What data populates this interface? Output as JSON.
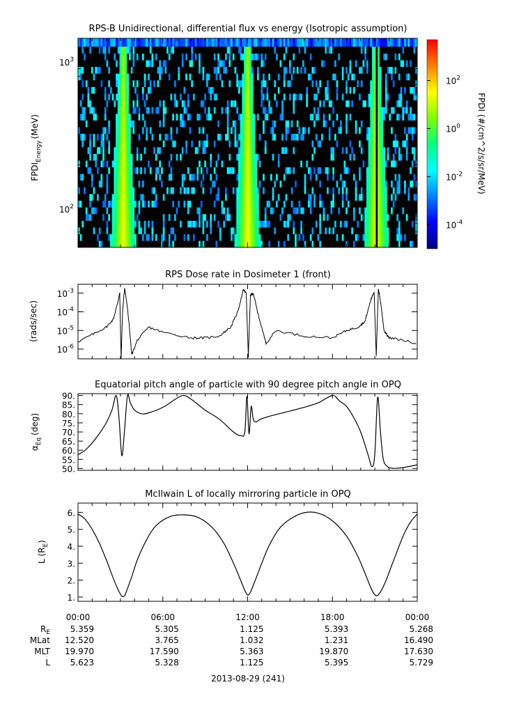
{
  "date_label": "2013-08-29 (241)",
  "time_ticks": [
    "00:00",
    "06:00",
    "12:00",
    "18:00",
    "00:00"
  ],
  "ephemeris": {
    "rows": [
      {
        "label": "R",
        "label_sub": "E",
        "values": [
          "5.359",
          "5.305",
          "1.125",
          "5.393",
          "5.268"
        ]
      },
      {
        "label": "MLat",
        "label_sub": "",
        "values": [
          "12.520",
          "3.765",
          "1.032",
          "1.231",
          "16.490"
        ]
      },
      {
        "label": "MLT",
        "label_sub": "",
        "values": [
          "19.970",
          "17.590",
          "5.363",
          "19.870",
          "17.630"
        ]
      },
      {
        "label": "L",
        "label_sub": "",
        "values": [
          "5.623",
          "5.328",
          "1.125",
          "5.395",
          "5.729"
        ]
      }
    ]
  },
  "colors": {
    "colormap": [
      "#000080",
      "#0000ff",
      "#0080ff",
      "#00ffff",
      "#00ff80",
      "#80ff00",
      "#ffff00",
      "#ff8000",
      "#ff0000"
    ]
  },
  "chart_data": [
    {
      "type": "heatmap",
      "title": "RPS-B  Unidirectional, differential flux vs energy (Isotropic assumption)",
      "ylabel": "FPDI",
      "ylabel_sub": "Energy",
      "ylabel_unit": "(MeV)",
      "yscale": "log",
      "ylim": [
        55,
        1450
      ],
      "yticks": [
        {
          "base": "10",
          "exp": "2",
          "value": 100
        },
        {
          "base": "10",
          "exp": "3",
          "value": 1000
        }
      ],
      "x_hours": [
        0,
        24
      ],
      "colorbar": {
        "label": "FPDI (#/cm^2/s/sr/MeV)",
        "scale": "log",
        "range": [
          1e-05,
          5000
        ],
        "ticks": [
          {
            "base": "10",
            "exp": "2",
            "value": 100
          },
          {
            "base": "10",
            "exp": "0",
            "value": 1
          },
          {
            "base": "10",
            "exp": "-2",
            "value": 0.01
          },
          {
            "base": "10",
            "exp": "-4",
            "value": 0.0001
          }
        ]
      },
      "belt_passes_hours": [
        3.2,
        12.0,
        21.1
      ]
    },
    {
      "type": "line",
      "title": "RPS  Dose rate in Dosimeter 1 (front)",
      "ylabel": "(rads/sec)",
      "yscale": "log",
      "ylim": [
        3e-07,
        0.003
      ],
      "yticks": [
        {
          "base": "10",
          "exp": "-3",
          "value": 0.001
        },
        {
          "base": "10",
          "exp": "-4",
          "value": 0.0001
        },
        {
          "base": "10",
          "exp": "-5",
          "value": 1e-05
        },
        {
          "base": "10",
          "exp": "-6",
          "value": 1e-06
        }
      ],
      "x_hours": [
        0,
        1,
        2,
        2.5,
        2.8,
        2.95,
        3.05,
        3.15,
        3.3,
        3.45,
        3.6,
        3.8,
        4.2,
        5,
        6,
        8,
        9,
        10,
        10.8,
        11.3,
        11.7,
        11.9,
        12.05,
        12.2,
        12.4,
        12.7,
        13.3,
        14,
        16,
        18,
        19,
        19.8,
        20.3,
        20.7,
        20.95,
        21.1,
        21.25,
        21.45,
        21.65,
        22,
        23,
        24
      ],
      "y_values": [
        2.5e-06,
        6e-06,
        1.5e-05,
        4e-05,
        0.0003,
        0.001,
        3e-07,
        0.0001,
        0.002,
        0.0003,
        3e-05,
        5e-07,
        3e-06,
        1.5e-05,
        8e-06,
        4e-06,
        4e-06,
        5e-06,
        1.5e-05,
        0.0001,
        0.0015,
        0.001,
        4e-07,
        0.0008,
        0.001,
        0.0001,
        2e-06,
        1e-05,
        5e-06,
        4e-06,
        1e-05,
        1.5e-05,
        3e-05,
        0.0004,
        0.0012,
        4e-07,
        0.0018,
        0.0002,
        1e-05,
        4e-06,
        3e-06,
        2e-06
      ]
    },
    {
      "type": "line",
      "title": "Equatorial pitch angle of particle with 90 degree pitch angle in OPQ",
      "ylabel": "α",
      "ylabel_sub": "Eq",
      "ylabel_unit": "(deg)",
      "ylim": [
        49,
        91
      ],
      "yticks": [
        50,
        55,
        60,
        65,
        70,
        75,
        80,
        85,
        90
      ],
      "ytick_labels": [
        "50.",
        "55.",
        "60.",
        "65.",
        "70.",
        "75.",
        "80.",
        "85.",
        "90."
      ],
      "x_hours": [
        0,
        0.5,
        1,
        1.5,
        2,
        2.4,
        2.7,
        2.9,
        3.1,
        3.3,
        3.5,
        3.7,
        4,
        4.5,
        5,
        6,
        7,
        7.5,
        8,
        9,
        10,
        11,
        11.5,
        11.8,
        11.95,
        12.1,
        12.25,
        12.4,
        12.6,
        12.9,
        13.5,
        14,
        15,
        16,
        17,
        18,
        18.5,
        19,
        19.5,
        20,
        20.5,
        20.8,
        21.0,
        21.2,
        21.4,
        21.6,
        21.9,
        22.2,
        22.5,
        23,
        24
      ],
      "y_values": [
        57.5,
        60,
        64,
        69,
        75,
        82,
        90,
        78,
        57,
        72,
        90,
        86,
        82,
        80,
        80.5,
        83.5,
        88.5,
        90,
        88,
        82,
        77,
        70,
        68,
        70,
        89.5,
        69,
        84,
        77,
        75.5,
        77,
        78.5,
        79.5,
        81.5,
        83.5,
        86,
        90,
        87,
        84,
        78,
        70,
        58,
        51,
        58,
        89,
        70,
        55,
        51,
        50.2,
        50.1,
        50.5,
        52
      ]
    },
    {
      "type": "line",
      "title": "McIlwain L of locally mirroring particle in OPQ",
      "ylabel": "L (R",
      "ylabel_sub": "E",
      "ylabel_unit": ")",
      "ylim": [
        0.75,
        6.55
      ],
      "yticks": [
        1,
        2,
        3,
        4,
        5,
        6
      ],
      "ytick_labels": [
        "1.",
        "2.",
        "3.",
        "4.",
        "5.",
        "6."
      ],
      "x_hours": [
        0,
        0.5,
        1,
        1.5,
        2,
        2.5,
        2.8,
        3.1,
        3.3,
        3.5,
        3.8,
        4.2,
        4.8,
        5.5,
        6.5,
        7.5,
        8.5,
        9.5,
        10.3,
        11,
        11.5,
        11.8,
        12,
        12.2,
        12.5,
        13,
        13.5,
        14.2,
        15,
        16,
        17,
        18,
        19,
        19.8,
        20.4,
        20.8,
        21.1,
        21.4,
        21.8,
        22.3,
        23,
        23.5,
        24
      ],
      "y_values": [
        5.9,
        5.6,
        5.0,
        4.2,
        3.2,
        2.1,
        1.5,
        1.05,
        1.1,
        1.5,
        2.2,
        3.2,
        4.3,
        5.2,
        5.75,
        5.85,
        5.7,
        5.1,
        4.2,
        3.0,
        2.0,
        1.4,
        1.12,
        1.3,
        1.9,
        3.0,
        4.0,
        5.0,
        5.6,
        5.98,
        5.95,
        5.5,
        4.6,
        3.4,
        2.2,
        1.4,
        1.08,
        1.3,
        2.0,
        3.1,
        4.6,
        5.4,
        5.9
      ]
    }
  ]
}
